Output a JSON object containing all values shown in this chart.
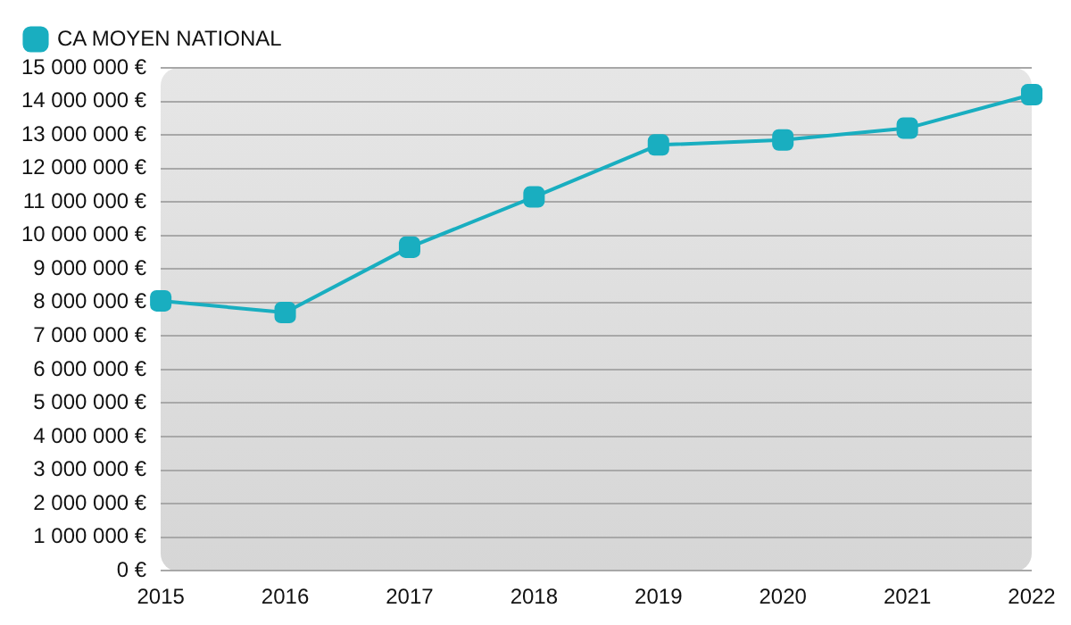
{
  "chart_data": {
    "type": "line",
    "categories": [
      "2015",
      "2016",
      "2017",
      "2018",
      "2019",
      "2020",
      "2021",
      "2022"
    ],
    "series": [
      {
        "name": "CA MOYEN NATIONAL",
        "color": "#19aec0",
        "values": [
          8050000,
          7700000,
          9650000,
          11150000,
          12700000,
          12850000,
          13200000,
          14200000
        ]
      }
    ],
    "ylim": [
      0,
      15000000
    ],
    "yticks": [
      {
        "value": 0,
        "label": "0 €"
      },
      {
        "value": 1000000,
        "label": "1 000 000 €"
      },
      {
        "value": 2000000,
        "label": "2 000 000 €"
      },
      {
        "value": 3000000,
        "label": "3 000 000 €"
      },
      {
        "value": 4000000,
        "label": "4 000 000 €"
      },
      {
        "value": 5000000,
        "label": "5 000 000 €"
      },
      {
        "value": 6000000,
        "label": "6 000 000 €"
      },
      {
        "value": 7000000,
        "label": "7 000 000 €"
      },
      {
        "value": 8000000,
        "label": "8 000 000 €"
      },
      {
        "value": 9000000,
        "label": "9 000 000 €"
      },
      {
        "value": 10000000,
        "label": "10 000 000 €"
      },
      {
        "value": 11000000,
        "label": "11 000 000 €"
      },
      {
        "value": 12000000,
        "label": "12 000 000 €"
      },
      {
        "value": 13000000,
        "label": "13 000 000 €"
      },
      {
        "value": 14000000,
        "label": "14 000 000 €"
      },
      {
        "value": 15000000,
        "label": "15 000 000 €"
      }
    ],
    "grid": "y",
    "legend": "top left",
    "marker": "square",
    "line_style": "solid"
  }
}
